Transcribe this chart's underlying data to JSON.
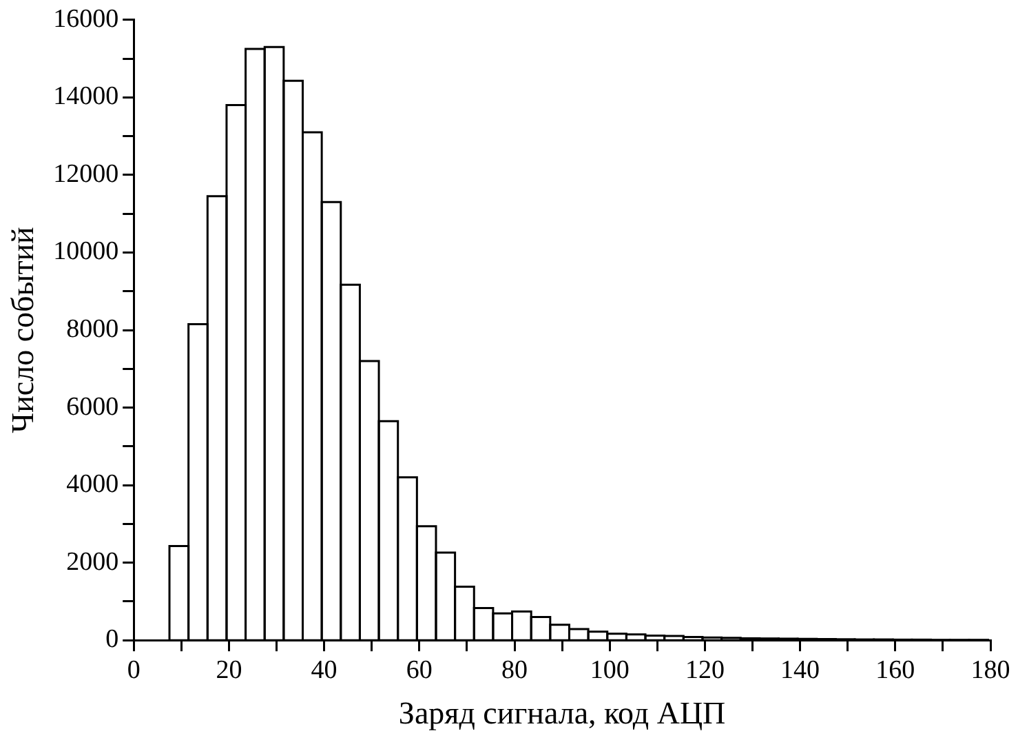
{
  "chart_data": {
    "type": "histogram",
    "xlabel": "Заряд сигнала, код АЦП",
    "ylabel": "Число событий",
    "color": "#000000",
    "bins": [
      7.5,
      11.5,
      15.5,
      19.5,
      23.5,
      27.5,
      31.5,
      35.5,
      39.5,
      43.5,
      47.5,
      51.5,
      55.5,
      59.5,
      63.5,
      67.5,
      71.5,
      75.5,
      79.5,
      83.5,
      87.5,
      91.5,
      95.5,
      99.5,
      103.5,
      107.5,
      111.5,
      115.5,
      119.5,
      123.5,
      127.5,
      131.5,
      135.5,
      139.5,
      143.5,
      147.5,
      151.5,
      155.5,
      159.5,
      163.5,
      167.5,
      171.5,
      175.5,
      179.5
    ],
    "values": [
      2430,
      8150,
      11450,
      13800,
      15250,
      15300,
      14430,
      13100,
      11300,
      9170,
      7200,
      5650,
      4200,
      2940,
      2260,
      1380,
      830,
      690,
      740,
      600,
      400,
      290,
      220,
      170,
      150,
      120,
      110,
      85,
      70,
      60,
      50,
      45,
      40,
      35,
      30,
      25,
      20,
      20,
      15,
      15,
      10,
      10,
      10
    ],
    "xlim": [
      0,
      180
    ],
    "xticks": [
      0,
      {
        "value": 10,
        "label": null
      },
      20,
      {
        "value": 30,
        "label": null
      },
      40,
      {
        "value": 50,
        "label": null
      },
      60,
      {
        "value": 70,
        "label": null
      },
      80,
      {
        "value": 90,
        "label": null
      },
      100,
      {
        "value": 110,
        "label": null
      },
      120,
      {
        "value": 130,
        "label": null
      },
      140,
      {
        "value": 150,
        "label": null
      },
      160,
      {
        "value": 170,
        "label": null
      },
      180
    ],
    "ylim": [
      0,
      16000
    ],
    "yticks": [
      0,
      {
        "value": 1000,
        "label": null
      },
      2000,
      {
        "value": 3000,
        "label": null
      },
      4000,
      {
        "value": 5000,
        "label": null
      },
      6000,
      {
        "value": 7000,
        "label": null
      },
      8000,
      {
        "value": 9000,
        "label": null
      },
      10000,
      {
        "value": 11000,
        "label": null
      },
      12000,
      {
        "value": 13000,
        "label": null
      },
      14000,
      {
        "value": 15000,
        "label": null
      },
      16000
    ],
    "grid": false,
    "legend": false
  }
}
